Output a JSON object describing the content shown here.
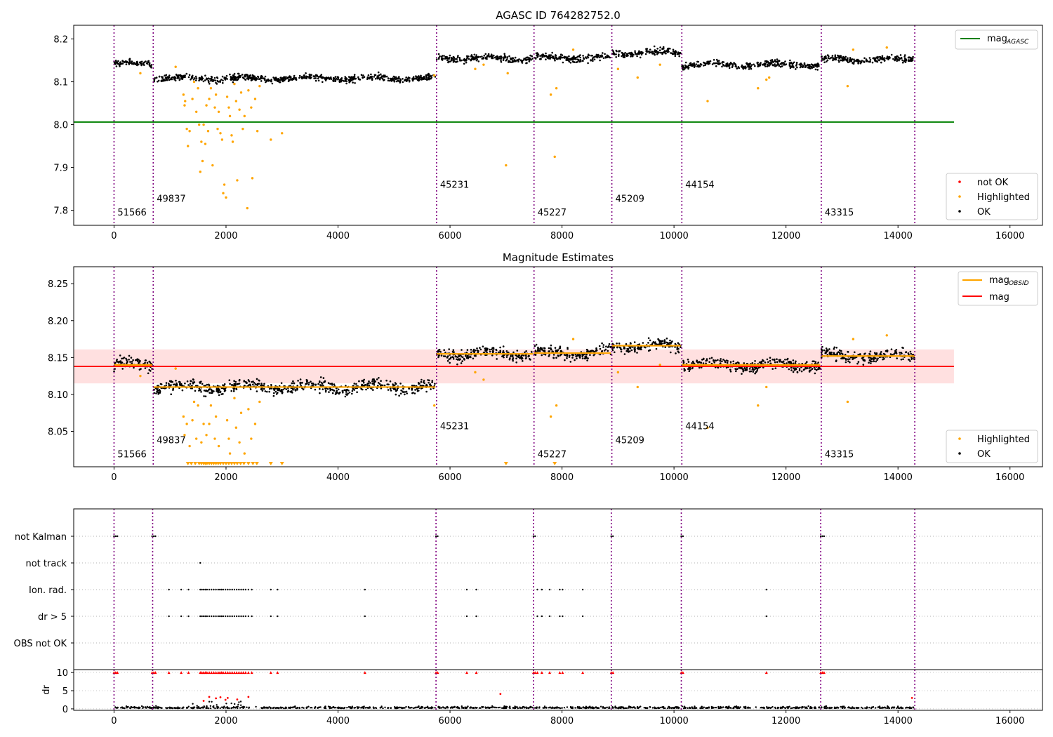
{
  "chart_data": [
    {
      "type": "scatter",
      "title": "AGASC ID 764282752.0",
      "xlim": [
        -720,
        16580
      ],
      "ylim": [
        7.765,
        8.232
      ],
      "x_ticks": [
        0,
        2000,
        4000,
        6000,
        8000,
        10000,
        12000,
        14000,
        16000
      ],
      "x_tick_labels": [
        "0",
        "2000",
        "4000",
        "6000",
        "8000",
        "10000",
        "12000",
        "14000",
        "16000"
      ],
      "y_ticks": [
        7.8,
        7.9,
        8.0,
        8.1,
        8.2
      ],
      "y_tick_labels": [
        "7.8",
        "7.9",
        "8.0",
        "8.1",
        "8.2"
      ],
      "mag_agasc": 8.006,
      "mag_agasc_line_x": [
        -720,
        15000
      ],
      "legend_top": {
        "placement": "top-right",
        "entries": [
          {
            "label": "mag",
            "subscript": "AGASC",
            "color": "#008000"
          }
        ]
      },
      "legend_bottom": {
        "placement": "lower-right",
        "entries": [
          {
            "label": "not OK",
            "color": "#ff0000"
          },
          {
            "label": "Highlighted",
            "color": "#ffa500"
          },
          {
            "label": "OK",
            "color": "#000000"
          }
        ]
      },
      "highlighted_points": [
        [
          1240,
          8.07
        ],
        [
          1260,
          8.045
        ],
        [
          1270,
          8.055
        ],
        [
          1300,
          7.99
        ],
        [
          1320,
          7.95
        ],
        [
          1350,
          7.985
        ],
        [
          1400,
          8.06
        ],
        [
          1430,
          8.1
        ],
        [
          1470,
          8.03
        ],
        [
          1500,
          8.085
        ],
        [
          1520,
          8.0
        ],
        [
          1540,
          7.89
        ],
        [
          1560,
          7.96
        ],
        [
          1580,
          7.915
        ],
        [
          1600,
          8.0
        ],
        [
          1630,
          7.955
        ],
        [
          1650,
          8.045
        ],
        [
          1680,
          7.985
        ],
        [
          1700,
          8.06
        ],
        [
          1730,
          8.085
        ],
        [
          1760,
          7.905
        ],
        [
          1800,
          8.04
        ],
        [
          1820,
          8.07
        ],
        [
          1850,
          7.99
        ],
        [
          1870,
          8.03
        ],
        [
          1900,
          7.98
        ],
        [
          1930,
          7.965
        ],
        [
          1950,
          7.84
        ],
        [
          1970,
          7.86
        ],
        [
          2000,
          7.83
        ],
        [
          2020,
          8.065
        ],
        [
          2050,
          8.04
        ],
        [
          2070,
          8.02
        ],
        [
          2100,
          7.975
        ],
        [
          2120,
          7.96
        ],
        [
          2150,
          8.095
        ],
        [
          2180,
          8.055
        ],
        [
          2200,
          7.87
        ],
        [
          2240,
          8.035
        ],
        [
          2270,
          8.075
        ],
        [
          2300,
          7.99
        ],
        [
          2330,
          8.02
        ],
        [
          2380,
          7.805
        ],
        [
          2400,
          8.08
        ],
        [
          2450,
          8.04
        ],
        [
          2470,
          7.875
        ],
        [
          2520,
          8.06
        ],
        [
          2560,
          7.985
        ],
        [
          2600,
          8.09
        ],
        [
          2800,
          7.965
        ],
        [
          3000,
          7.98
        ],
        [
          470,
          8.12
        ],
        [
          1100,
          8.135
        ],
        [
          5720,
          8.115
        ],
        [
          6450,
          8.13
        ],
        [
          6600,
          8.14
        ],
        [
          7000,
          7.905
        ],
        [
          7030,
          8.12
        ],
        [
          7800,
          8.07
        ],
        [
          7870,
          7.925
        ],
        [
          7900,
          8.085
        ],
        [
          8200,
          8.175
        ],
        [
          9000,
          8.13
        ],
        [
          9350,
          8.11
        ],
        [
          9750,
          8.14
        ],
        [
          10600,
          8.055
        ],
        [
          11500,
          8.085
        ],
        [
          11650,
          8.105
        ],
        [
          11700,
          8.11
        ],
        [
          13100,
          8.09
        ],
        [
          13200,
          8.175
        ],
        [
          13800,
          8.18
        ]
      ],
      "segments": [
        {
          "obsid": "51566",
          "x0": 0,
          "x1": 680,
          "mag": 8.142,
          "label_y": 7.788
        },
        {
          "obsid": "49837",
          "x0": 700,
          "x1": 5740,
          "mag": 8.108,
          "label_y": 7.82
        },
        {
          "obsid": "45231",
          "x0": 5760,
          "x1": 7480,
          "mag": 8.155,
          "label_y": 7.853
        },
        {
          "obsid": "45227",
          "x0": 7500,
          "x1": 8870,
          "mag": 8.156,
          "label_y": 7.788
        },
        {
          "obsid": "45209",
          "x0": 8890,
          "x1": 10120,
          "mag": 8.168,
          "label_y": 7.82
        },
        {
          "obsid": "44154",
          "x0": 10140,
          "x1": 12610,
          "mag": 8.14,
          "label_y": 7.853
        },
        {
          "obsid": "43315",
          "x0": 12630,
          "x1": 14300,
          "mag": 8.152,
          "label_y": 7.788
        }
      ]
    },
    {
      "type": "scatter",
      "title": "Magnitude Estimates",
      "xlim": [
        -720,
        16580
      ],
      "ylim": [
        8.002,
        8.273
      ],
      "x_ticks": [
        0,
        2000,
        4000,
        6000,
        8000,
        10000,
        12000,
        14000,
        16000
      ],
      "x_tick_labels": [
        "0",
        "2000",
        "4000",
        "6000",
        "8000",
        "10000",
        "12000",
        "14000",
        "16000"
      ],
      "y_ticks": [
        8.05,
        8.1,
        8.15,
        8.2,
        8.25
      ],
      "y_tick_labels": [
        "8.05",
        "8.10",
        "8.15",
        "8.20",
        "8.25"
      ],
      "mag": 8.138,
      "mag_band": [
        8.115,
        8.161
      ],
      "mag_line_x": [
        -720,
        15000
      ],
      "legend_top": {
        "placement": "top-right",
        "entries": [
          {
            "label": "mag",
            "subscript": "OBSID",
            "color": "#ffa500"
          },
          {
            "label": "mag",
            "color": "#ff0000"
          }
        ]
      },
      "legend_bottom": {
        "placement": "lower-right",
        "entries": [
          {
            "label": "Highlighted",
            "color": "#ffa500"
          },
          {
            "label": "OK",
            "color": "#000000"
          }
        ]
      },
      "highlighted_points": [
        [
          1240,
          8.07
        ],
        [
          1260,
          8.045
        ],
        [
          1300,
          8.06
        ],
        [
          1350,
          8.03
        ],
        [
          1400,
          8.065
        ],
        [
          1430,
          8.09
        ],
        [
          1470,
          8.04
        ],
        [
          1500,
          8.085
        ],
        [
          1560,
          8.035
        ],
        [
          1600,
          8.06
        ],
        [
          1650,
          8.045
        ],
        [
          1700,
          8.06
        ],
        [
          1730,
          8.085
        ],
        [
          1800,
          8.04
        ],
        [
          1820,
          8.07
        ],
        [
          1870,
          8.03
        ],
        [
          2020,
          8.065
        ],
        [
          2050,
          8.04
        ],
        [
          2070,
          8.02
        ],
        [
          2150,
          8.095
        ],
        [
          2180,
          8.055
        ],
        [
          2240,
          8.035
        ],
        [
          2270,
          8.075
        ],
        [
          2330,
          8.02
        ],
        [
          2400,
          8.08
        ],
        [
          2450,
          8.04
        ],
        [
          2520,
          8.06
        ],
        [
          2600,
          8.09
        ],
        [
          5720,
          8.085
        ],
        [
          6450,
          8.13
        ],
        [
          6600,
          8.12
        ],
        [
          7800,
          8.07
        ],
        [
          7900,
          8.085
        ],
        [
          8200,
          8.175
        ],
        [
          9000,
          8.13
        ],
        [
          9350,
          8.11
        ],
        [
          9750,
          8.14
        ],
        [
          10600,
          8.055
        ],
        [
          11500,
          8.085
        ],
        [
          11650,
          8.11
        ],
        [
          13100,
          8.09
        ],
        [
          13200,
          8.175
        ],
        [
          13800,
          8.18
        ],
        [
          470,
          8.125
        ],
        [
          1100,
          8.135
        ]
      ],
      "offscale_low_x": [
        1320,
        1380,
        1450,
        1520,
        1560,
        1600,
        1630,
        1660,
        1700,
        1740,
        1780,
        1820,
        1860,
        1900,
        1950,
        2000,
        2050,
        2100,
        2150,
        2200,
        2260,
        2320,
        2400,
        2480,
        2550,
        2800,
        3000,
        7000,
        7870
      ],
      "segments": [
        {
          "obsid": "51566",
          "x0": 0,
          "x1": 680,
          "mag": 8.14,
          "label_y": 8.015
        },
        {
          "obsid": "49837",
          "x0": 700,
          "x1": 5740,
          "mag": 8.11,
          "label_y": 8.034
        },
        {
          "obsid": "45231",
          "x0": 5760,
          "x1": 7480,
          "mag": 8.155,
          "label_y": 8.053
        },
        {
          "obsid": "45227",
          "x0": 7500,
          "x1": 8870,
          "mag": 8.156,
          "label_y": 8.015
        },
        {
          "obsid": "45209",
          "x0": 8890,
          "x1": 10120,
          "mag": 8.166,
          "label_y": 8.034
        },
        {
          "obsid": "44154",
          "x0": 10140,
          "x1": 12610,
          "mag": 8.14,
          "label_y": 8.053
        },
        {
          "obsid": "43315",
          "x0": 12630,
          "x1": 14300,
          "mag": 8.152,
          "label_y": 8.015
        }
      ]
    },
    {
      "type": "scatter",
      "xlim": [
        -720,
        16580
      ],
      "x_ticks": [
        0,
        2000,
        4000,
        6000,
        8000,
        10000,
        12000,
        14000,
        16000
      ],
      "x_tick_labels": [
        "0",
        "2000",
        "4000",
        "6000",
        "8000",
        "10000",
        "12000",
        "14000",
        "16000"
      ],
      "flag_rows": [
        "not Kalman",
        "not track",
        "Ion. rad.",
        "dr > 5",
        "OBS not OK"
      ],
      "flag_points": {
        "not Kalman": [
          0,
          30,
          60,
          680,
          710,
          740,
          5750,
          5780,
          7490,
          7520,
          8880,
          8910,
          10130,
          10160,
          12620,
          12650,
          12680
        ],
        "not track": [
          1540
        ],
        "Ion. rad.": [
          980,
          1200,
          1330,
          1540,
          1570,
          1600,
          1630,
          1660,
          1700,
          1740,
          1780,
          1820,
          1860,
          1890,
          1920,
          1950,
          1990,
          2030,
          2070,
          2110,
          2150,
          2190,
          2230,
          2270,
          2310,
          2350,
          2400,
          2460,
          2800,
          2920,
          4480,
          6300,
          6470,
          7560,
          7640,
          7780,
          7960,
          8010,
          8370,
          11650
        ],
        "dr > 5": [
          980,
          1200,
          1330,
          1540,
          1570,
          1600,
          1630,
          1660,
          1700,
          1740,
          1780,
          1820,
          1860,
          1890,
          1920,
          1950,
          1990,
          2030,
          2070,
          2110,
          2150,
          2190,
          2230,
          2270,
          2310,
          2350,
          2400,
          2460,
          2800,
          2920,
          4480,
          6300,
          6470,
          7560,
          7640,
          7780,
          7960,
          8010,
          8370,
          11650
        ],
        "OBS not OK": []
      },
      "obsid_boundaries": [
        0,
        690,
        5750,
        7490,
        8880,
        10130,
        12620,
        14300
      ]
    },
    {
      "type": "scatter",
      "ylabel": "dr",
      "xlim": [
        -720,
        16580
      ],
      "ylim": [
        -0.4,
        10.8
      ],
      "y_ticks": [
        0,
        5,
        10
      ],
      "y_tick_labels": [
        "0",
        "5",
        "10"
      ],
      "x_ticks": [
        0,
        2000,
        4000,
        6000,
        8000,
        10000,
        12000,
        14000,
        16000
      ],
      "x_tick_labels": [
        "0",
        "2000",
        "4000",
        "6000",
        "8000",
        "10000",
        "12000",
        "14000",
        "16000"
      ],
      "dr_cap": 10,
      "capped_x": [
        0,
        30,
        60,
        680,
        710,
        740,
        980,
        1200,
        1330,
        1540,
        1570,
        1600,
        1630,
        1660,
        1700,
        1740,
        1780,
        1820,
        1860,
        1890,
        1920,
        1950,
        1990,
        2030,
        2070,
        2110,
        2150,
        2190,
        2230,
        2270,
        2310,
        2350,
        2400,
        2460,
        2800,
        2920,
        4480,
        5750,
        5780,
        6300,
        6470,
        7490,
        7520,
        7560,
        7640,
        7780,
        7960,
        8010,
        8370,
        8880,
        8910,
        10130,
        10160,
        11650,
        12620,
        12650,
        12680
      ],
      "high_dr_points": [
        [
          1700,
          3.3
        ],
        [
          1820,
          2.9
        ],
        [
          1900,
          3.2
        ],
        [
          1990,
          2.5
        ],
        [
          2030,
          3.0
        ],
        [
          2400,
          3.3
        ],
        [
          6900,
          4.1
        ],
        [
          14250,
          3.0
        ],
        [
          1600,
          2.2
        ],
        [
          2200,
          2.6
        ]
      ]
    }
  ]
}
